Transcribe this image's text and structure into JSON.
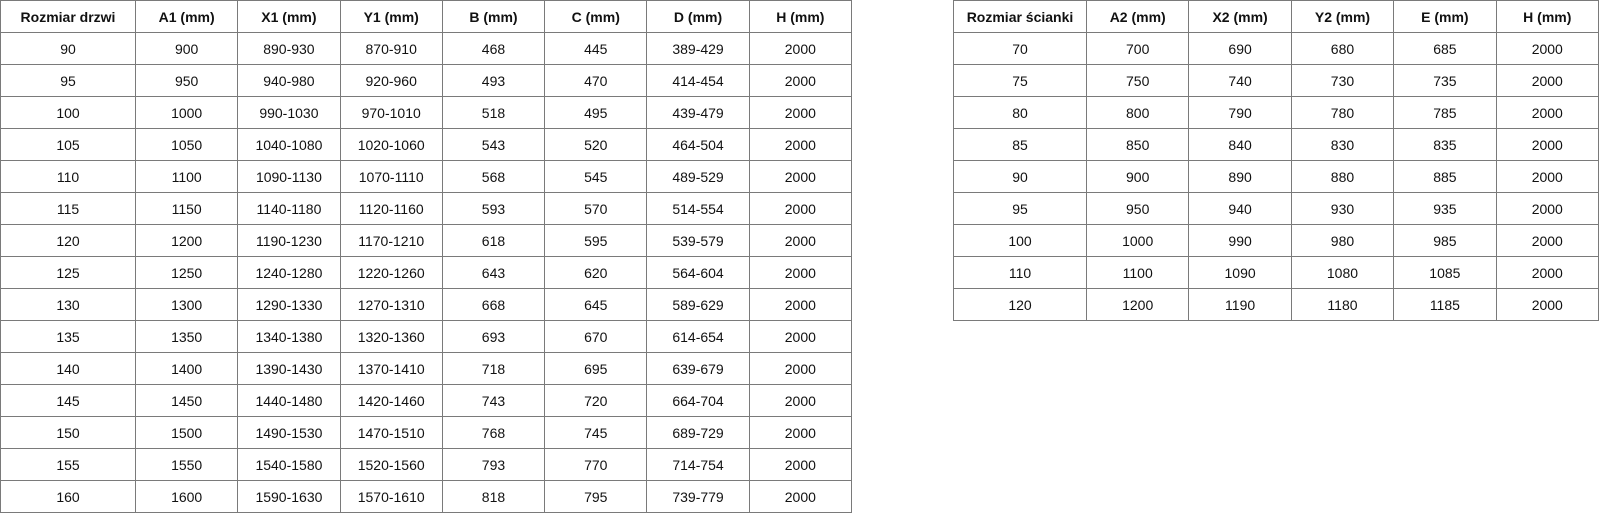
{
  "doors_table": {
    "headers": [
      "Rozmiar drzwi",
      "A1 (mm)",
      "X1 (mm)",
      "Y1 (mm)",
      "B (mm)",
      "C (mm)",
      "D (mm)",
      "H (mm)"
    ],
    "rows": [
      [
        "90",
        "900",
        "890-930",
        "870-910",
        "468",
        "445",
        "389-429",
        "2000"
      ],
      [
        "95",
        "950",
        "940-980",
        "920-960",
        "493",
        "470",
        "414-454",
        "2000"
      ],
      [
        "100",
        "1000",
        "990-1030",
        "970-1010",
        "518",
        "495",
        "439-479",
        "2000"
      ],
      [
        "105",
        "1050",
        "1040-1080",
        "1020-1060",
        "543",
        "520",
        "464-504",
        "2000"
      ],
      [
        "110",
        "1100",
        "1090-1130",
        "1070-1110",
        "568",
        "545",
        "489-529",
        "2000"
      ],
      [
        "115",
        "1150",
        "1140-1180",
        "1120-1160",
        "593",
        "570",
        "514-554",
        "2000"
      ],
      [
        "120",
        "1200",
        "1190-1230",
        "1170-1210",
        "618",
        "595",
        "539-579",
        "2000"
      ],
      [
        "125",
        "1250",
        "1240-1280",
        "1220-1260",
        "643",
        "620",
        "564-604",
        "2000"
      ],
      [
        "130",
        "1300",
        "1290-1330",
        "1270-1310",
        "668",
        "645",
        "589-629",
        "2000"
      ],
      [
        "135",
        "1350",
        "1340-1380",
        "1320-1360",
        "693",
        "670",
        "614-654",
        "2000"
      ],
      [
        "140",
        "1400",
        "1390-1430",
        "1370-1410",
        "718",
        "695",
        "639-679",
        "2000"
      ],
      [
        "145",
        "1450",
        "1440-1480",
        "1420-1460",
        "743",
        "720",
        "664-704",
        "2000"
      ],
      [
        "150",
        "1500",
        "1490-1530",
        "1470-1510",
        "768",
        "745",
        "689-729",
        "2000"
      ],
      [
        "155",
        "1550",
        "1540-1580",
        "1520-1560",
        "793",
        "770",
        "714-754",
        "2000"
      ],
      [
        "160",
        "1600",
        "1590-1630",
        "1570-1610",
        "818",
        "795",
        "739-779",
        "2000"
      ]
    ]
  },
  "wall_table": {
    "headers": [
      "Rozmiar ścianki",
      "A2 (mm)",
      "X2 (mm)",
      "Y2 (mm)",
      "E (mm)",
      "H (mm)"
    ],
    "rows": [
      [
        "70",
        "700",
        "690",
        "680",
        "685",
        "2000"
      ],
      [
        "75",
        "750",
        "740",
        "730",
        "735",
        "2000"
      ],
      [
        "80",
        "800",
        "790",
        "780",
        "785",
        "2000"
      ],
      [
        "85",
        "850",
        "840",
        "830",
        "835",
        "2000"
      ],
      [
        "90",
        "900",
        "890",
        "880",
        "885",
        "2000"
      ],
      [
        "95",
        "950",
        "940",
        "930",
        "935",
        "2000"
      ],
      [
        "100",
        "1000",
        "990",
        "980",
        "985",
        "2000"
      ],
      [
        "110",
        "1100",
        "1090",
        "1080",
        "1085",
        "2000"
      ],
      [
        "120",
        "1200",
        "1190",
        "1180",
        "1185",
        "2000"
      ]
    ]
  }
}
